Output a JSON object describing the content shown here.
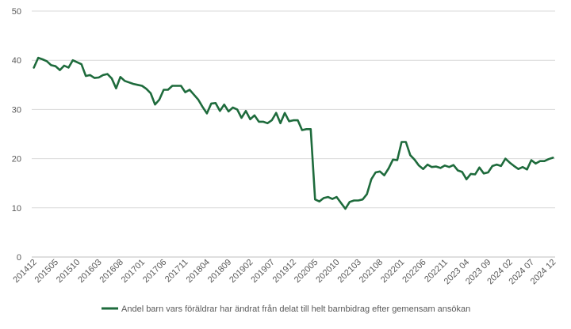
{
  "colors": {
    "series": "#1e6b3c",
    "grid": "#d9d9d9",
    "axis": "#bfbfbf",
    "text": "#595959"
  },
  "chart_data": {
    "type": "line",
    "title": "",
    "xlabel": "",
    "ylabel": "",
    "ylim": [
      0,
      50
    ],
    "yticks": [
      0,
      10,
      20,
      30,
      40,
      50
    ],
    "grid": true,
    "legend_position": "bottom",
    "x_tick_labels": [
      "201412",
      "201505",
      "201510",
      "201603",
      "201608",
      "201701",
      "201706",
      "201711",
      "201804",
      "201809",
      "201902",
      "201907",
      "201912",
      "202005",
      "202010",
      "202103",
      "202108",
      "202201",
      "202206",
      "202211",
      "2023 04",
      "2023 09",
      "2024 02",
      "2024 07",
      "2024 12"
    ],
    "series": [
      {
        "name": "Andel barn vars föräldrar har ändrat från delat till helt barnbidrag efter gemensam ansökan",
        "values": [
          38.5,
          40.5,
          40.2,
          39.8,
          39.0,
          38.8,
          38.0,
          38.9,
          38.5,
          40.0,
          39.6,
          39.2,
          36.8,
          37.0,
          36.4,
          36.5,
          37.0,
          37.2,
          36.3,
          34.3,
          36.6,
          35.8,
          35.5,
          35.2,
          35.0,
          34.8,
          34.2,
          33.3,
          31.0,
          32.0,
          34.0,
          34.0,
          34.8,
          34.8,
          34.8,
          33.5,
          34.0,
          33.0,
          32.0,
          30.5,
          29.2,
          31.2,
          31.3,
          29.7,
          31.0,
          29.6,
          30.4,
          30.0,
          28.3,
          29.7,
          28.0,
          28.8,
          27.5,
          27.5,
          27.2,
          27.8,
          29.3,
          27.2,
          29.3,
          27.6,
          27.8,
          27.8,
          25.8,
          26.0,
          26.0,
          11.7,
          11.3,
          12.0,
          12.2,
          11.8,
          12.2,
          11.0,
          9.8,
          11.2,
          11.5,
          11.5,
          11.7,
          12.8,
          15.8,
          17.2,
          17.4,
          16.6,
          18.0,
          19.8,
          19.7,
          23.4,
          23.4,
          20.7,
          19.8,
          18.6,
          17.9,
          18.8,
          18.3,
          18.4,
          18.1,
          18.6,
          18.3,
          18.7,
          17.6,
          17.3,
          15.8,
          16.9,
          16.8,
          18.2,
          17.0,
          17.2,
          18.5,
          18.8,
          18.5,
          20.0,
          19.2,
          18.5,
          17.9,
          18.3,
          17.8,
          19.7,
          19.0,
          19.5,
          19.5,
          19.9,
          20.2
        ]
      }
    ]
  }
}
